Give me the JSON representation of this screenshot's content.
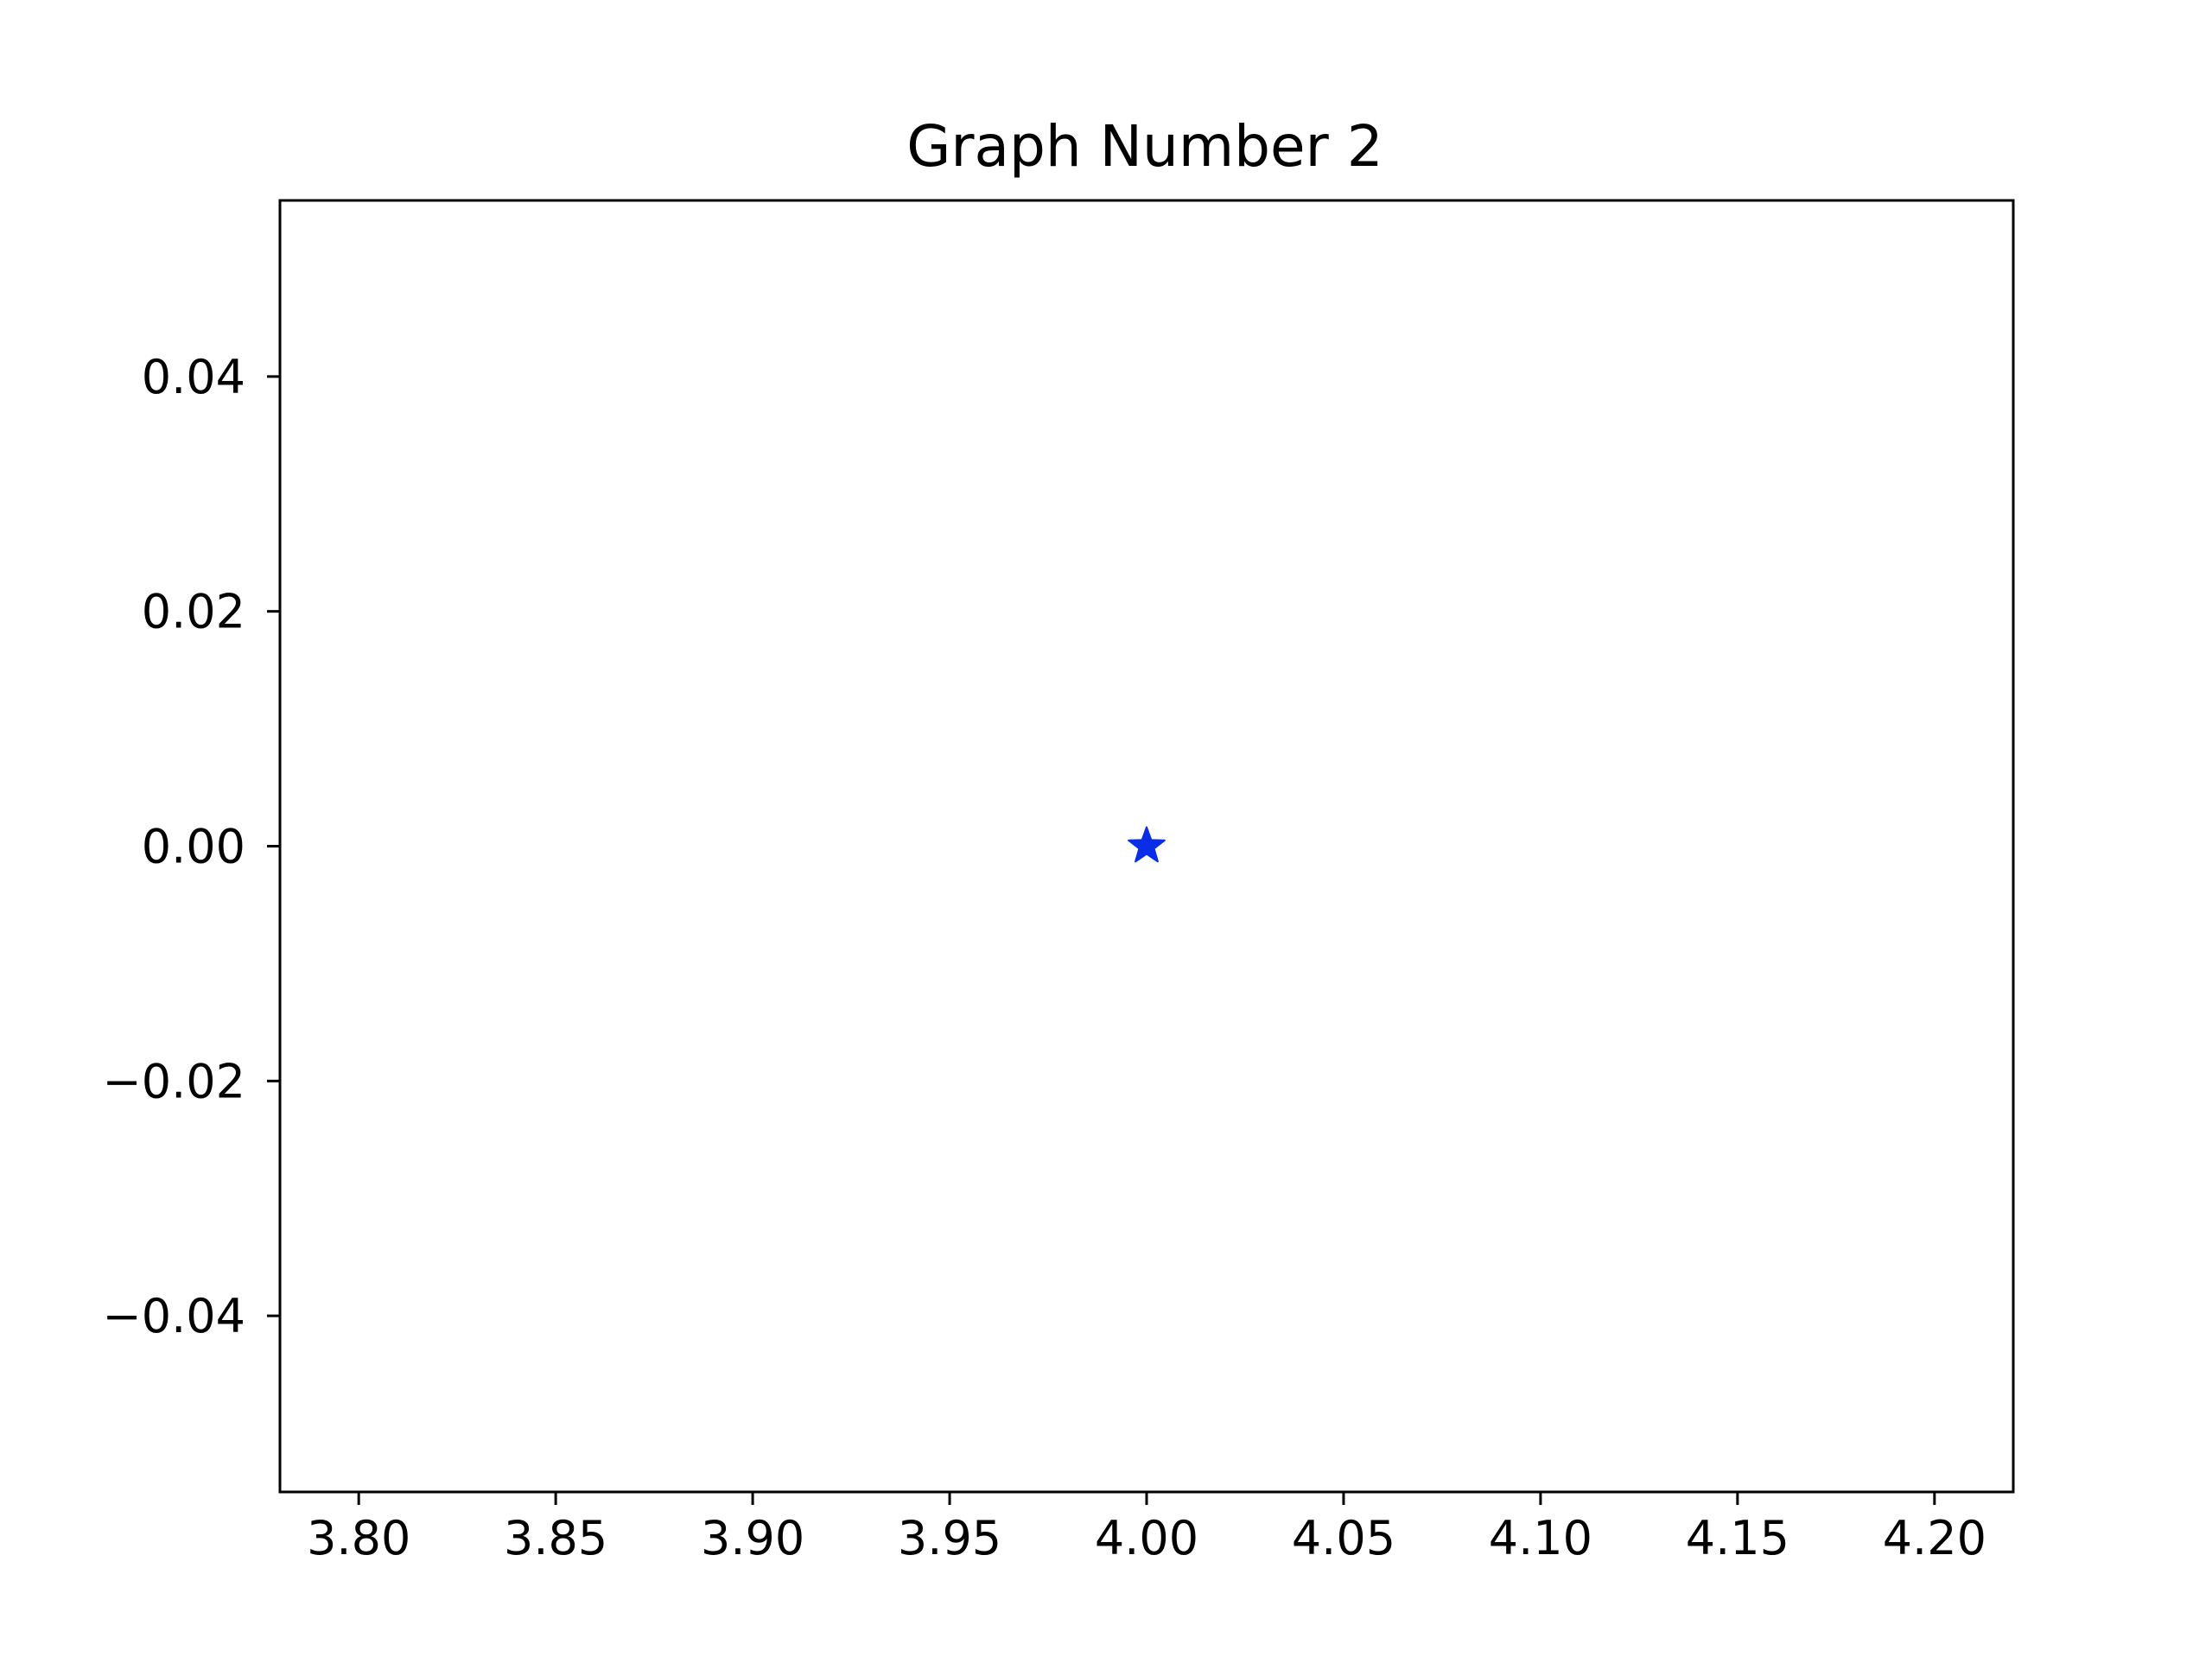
{
  "chart_data": {
    "type": "scatter",
    "title": "Graph Number 2",
    "xlabel": "",
    "ylabel": "",
    "xlim": [
      3.78,
      4.22
    ],
    "ylim": [
      -0.055,
      0.055
    ],
    "x_ticks": [
      "3.80",
      "3.85",
      "3.90",
      "3.95",
      "4.00",
      "4.05",
      "4.10",
      "4.15",
      "4.20"
    ],
    "x_tick_values": [
      3.8,
      3.85,
      3.9,
      3.95,
      4.0,
      4.05,
      4.1,
      4.15,
      4.2
    ],
    "y_ticks": [
      "0.04",
      "0.02",
      "0.00",
      "−0.02",
      "−0.04"
    ],
    "y_tick_values": [
      0.04,
      0.02,
      0.0,
      -0.02,
      -0.04
    ],
    "grid": false,
    "series": [
      {
        "marker": "star",
        "color": "#0a2ee8",
        "points": [
          {
            "x": 4.0,
            "y": 0.0
          }
        ]
      }
    ]
  }
}
